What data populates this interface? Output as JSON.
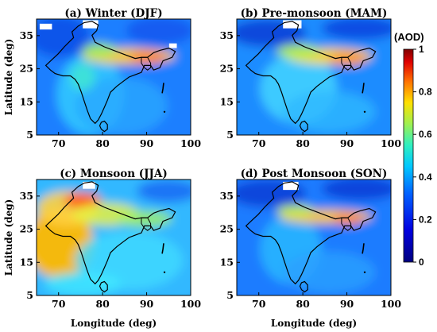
{
  "figure": {
    "panels": [
      {
        "title": "(a) Winter (DJF)",
        "season": "DJF"
      },
      {
        "title": "(b) Pre-monsoon (MAM)",
        "season": "MAM"
      },
      {
        "title": "(c) Monsoon (JJA)",
        "season": "JJA"
      },
      {
        "title": "(d) Post Monsoon (SON)",
        "season": "SON"
      }
    ],
    "xlabel": "Longitude (deg)",
    "ylabel": "Latitude (deg)",
    "x_ticks": [
      "70",
      "80",
      "90",
      "100"
    ],
    "y_ticks": [
      "35",
      "25",
      "15",
      "5"
    ],
    "colorbar": {
      "title": "(AOD)",
      "ticks": [
        "1",
        "0.8",
        "0.6",
        "0.4",
        "0.2",
        "0"
      ],
      "range": [
        0,
        1
      ]
    }
  },
  "colors": {
    "aod_0": "#00007f",
    "aod_02": "#0050ff",
    "aod_04": "#20e0e0",
    "aod_06": "#c8f030",
    "aod_08": "#ff8000",
    "aod_1": "#7f0000",
    "border": "#000000"
  }
}
